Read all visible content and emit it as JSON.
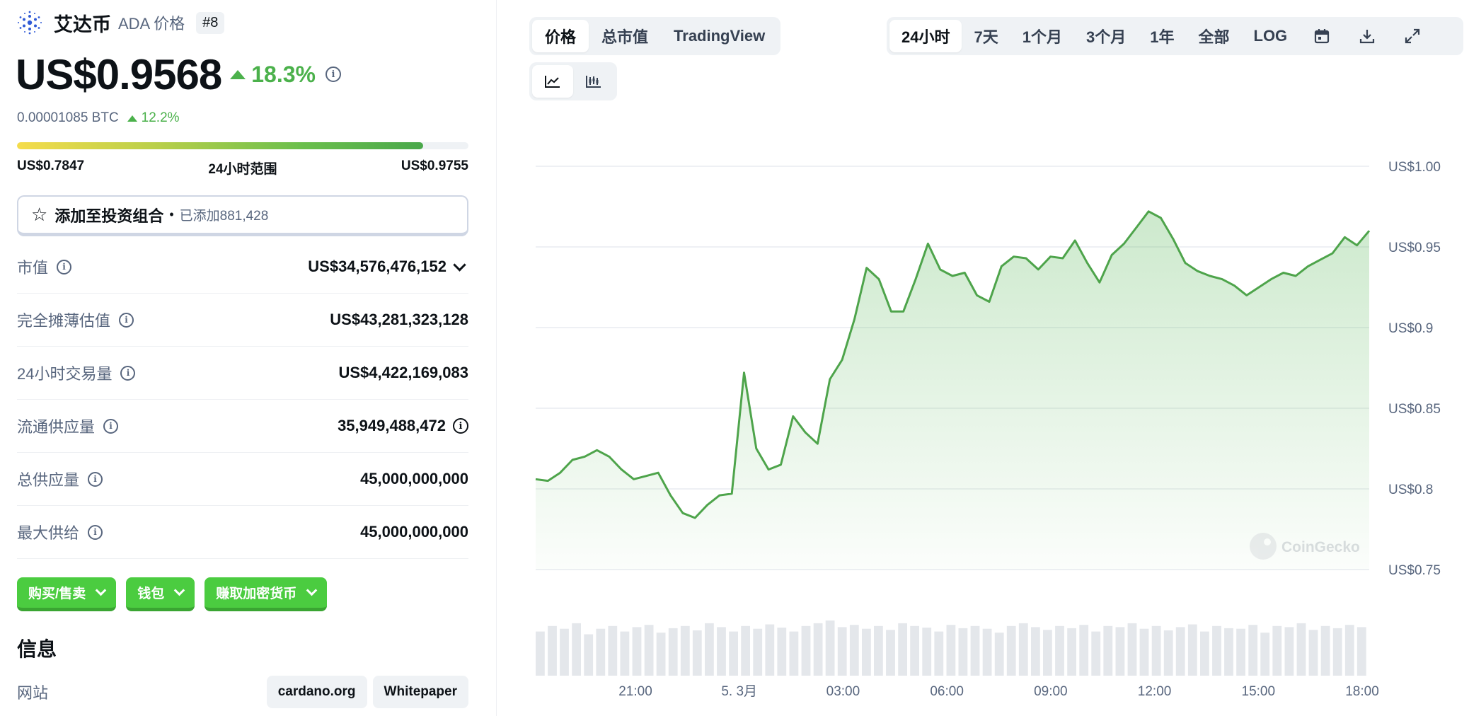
{
  "coin": {
    "name": "艾达币",
    "symbol_label": "ADA 价格",
    "rank": "#8",
    "price": "US$0.9568",
    "change_24h": "18.3%",
    "btc_price": "0.00001085 BTC",
    "btc_change": "12.2%"
  },
  "range": {
    "low": "US$0.7847",
    "label": "24小时范围",
    "high": "US$0.9755",
    "position_fraction": 0.9
  },
  "portfolio": {
    "label": "添加至投资组合",
    "separator": "•",
    "count": "已添加881,428"
  },
  "stats": [
    {
      "label": "市值",
      "value": "US$34,576,476,152"
    },
    {
      "label": "完全摊薄估值",
      "value": "US$43,281,323,128"
    },
    {
      "label": "24小时交易量",
      "value": "US$4,422,169,083"
    },
    {
      "label": "流通供应量",
      "value": "35,949,488,472"
    },
    {
      "label": "总供应量",
      "value": "45,000,000,000"
    },
    {
      "label": "最大供给",
      "value": "45,000,000,000"
    }
  ],
  "actions": [
    "购买/售卖",
    "钱包",
    "赚取加密货币"
  ],
  "info": {
    "title": "信息",
    "website_label": "网站",
    "links": [
      "cardano.org",
      "Whitepaper"
    ]
  },
  "chart_tabs": [
    "价格",
    "总市值",
    "TradingView"
  ],
  "range_tabs": [
    "24小时",
    "7天",
    "1个月",
    "3个月",
    "1年",
    "全部",
    "LOG"
  ],
  "icons": [
    "calendar-icon",
    "download-icon",
    "expand-icon",
    "line-chart-icon",
    "candlestick-icon"
  ],
  "watermark": "CoinGecko",
  "colors": {
    "accent_green": "#4bb14b",
    "button_green": "#4bcc40",
    "text_muted": "#58667e"
  },
  "chart_data": {
    "type": "area",
    "title": "",
    "xlabel": "",
    "ylabel": "",
    "x_tick_labels": [
      "21:00",
      "5. 3月",
      "03:00",
      "06:00",
      "09:00",
      "12:00",
      "15:00",
      "18:00"
    ],
    "y_tick_labels": [
      "US$1.00",
      "US$0.95",
      "US$0.9",
      "US$0.85",
      "US$0.8",
      "US$0.75"
    ],
    "ylim": [
      0.75,
      1.0
    ],
    "time_span_hours": 24,
    "grid": true,
    "price": [
      0.806,
      0.805,
      0.81,
      0.818,
      0.82,
      0.824,
      0.82,
      0.812,
      0.806,
      0.808,
      0.81,
      0.796,
      0.785,
      0.782,
      0.79,
      0.796,
      0.797,
      0.872,
      0.825,
      0.812,
      0.815,
      0.845,
      0.835,
      0.828,
      0.868,
      0.88,
      0.905,
      0.937,
      0.93,
      0.91,
      0.91,
      0.93,
      0.952,
      0.936,
      0.932,
      0.934,
      0.92,
      0.916,
      0.938,
      0.944,
      0.943,
      0.936,
      0.944,
      0.943,
      0.954,
      0.94,
      0.928,
      0.945,
      0.952,
      0.962,
      0.972,
      0.968,
      0.955,
      0.94,
      0.935,
      0.932,
      0.93,
      0.926,
      0.92,
      0.925,
      0.93,
      0.934,
      0.932,
      0.938,
      0.942,
      0.946,
      0.956,
      0.951,
      0.96
    ],
    "volume_relative": [
      0.8,
      0.9,
      0.85,
      0.95,
      0.75,
      0.85,
      0.9,
      0.8,
      0.88,
      0.92,
      0.78,
      0.86,
      0.9,
      0.82,
      0.95,
      0.88,
      0.8,
      0.9,
      0.85,
      0.93,
      0.87,
      0.8,
      0.9,
      0.95,
      1.0,
      0.88,
      0.92,
      0.85,
      0.9,
      0.83,
      0.95,
      0.9,
      0.87,
      0.8,
      0.92,
      0.86,
      0.9,
      0.85,
      0.78,
      0.9,
      0.95,
      0.88,
      0.83,
      0.9,
      0.86,
      0.92,
      0.8,
      0.9,
      0.88,
      0.95,
      0.85,
      0.9,
      0.82,
      0.88,
      0.93,
      0.8,
      0.9,
      0.86,
      0.85,
      0.92,
      0.78,
      0.9,
      0.88,
      0.95,
      0.83,
      0.9,
      0.86,
      0.92,
      0.88
    ]
  }
}
